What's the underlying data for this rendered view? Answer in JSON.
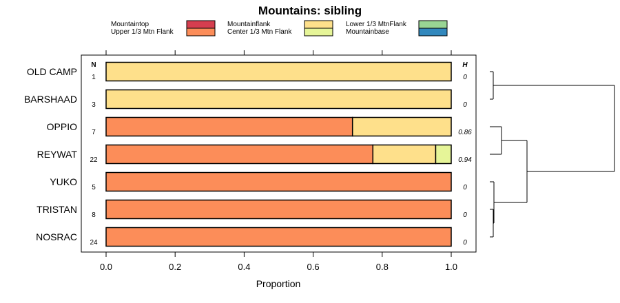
{
  "chart_data": {
    "type": "bar",
    "orientation": "horizontal",
    "stacked": true,
    "title": "Mountains: sibling",
    "xlabel": "Proportion",
    "ylabel": "",
    "xlim": [
      0,
      1
    ],
    "x_ticks": [
      "0.0",
      "0.2",
      "0.4",
      "0.6",
      "0.8",
      "1.0"
    ],
    "n_header": "N",
    "h_header": "H",
    "legend_placement": "top",
    "legend": [
      {
        "name": "Mountaintop",
        "color": "#d53e4f"
      },
      {
        "name": "Upper 1/3 Mtn Flank",
        "color": "#fc8d59"
      },
      {
        "name": "Mountainflank",
        "color": "#fee08b"
      },
      {
        "name": "Center 1/3 Mtn Flank",
        "color": "#e6f598"
      },
      {
        "name": "Lower 1/3 MtnFlank",
        "color": "#99d594"
      },
      {
        "name": "Mountainbase",
        "color": "#3288bd"
      }
    ],
    "categories": [
      "OLD CAMP",
      "BARSHAAD",
      "OPPIO",
      "REYWAT",
      "YUKO",
      "TRISTAN",
      "NOSRAC"
    ],
    "n": [
      "1",
      "3",
      "7",
      "22",
      "5",
      "8",
      "24"
    ],
    "h": [
      "0",
      "0",
      "0.86",
      "0.94",
      "0",
      "0",
      "0"
    ],
    "series": [
      {
        "name": "Mountaintop",
        "values": [
          0,
          0,
          0,
          0,
          0,
          0,
          0
        ]
      },
      {
        "name": "Upper 1/3 Mtn Flank",
        "values": [
          0,
          0,
          0.714,
          0.773,
          1,
          1,
          1
        ]
      },
      {
        "name": "Mountainflank",
        "values": [
          1,
          1,
          0.286,
          0.182,
          0,
          0,
          0
        ]
      },
      {
        "name": "Center 1/3 Mtn Flank",
        "values": [
          0,
          0,
          0,
          0.045,
          0,
          0,
          0
        ]
      },
      {
        "name": "Lower 1/3 MtnFlank",
        "values": [
          0,
          0,
          0,
          0,
          0,
          0,
          0
        ]
      },
      {
        "name": "Mountainbase",
        "values": [
          0,
          0,
          0,
          0,
          0,
          0,
          0
        ]
      }
    ],
    "dendrogram": true
  }
}
